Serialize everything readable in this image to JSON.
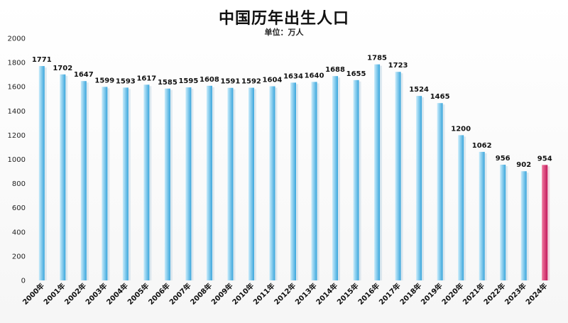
{
  "chart_data": {
    "type": "bar",
    "title": "中国历年出生人口",
    "subtitle": "单位：万人",
    "xlabel": "",
    "ylabel": "",
    "ylim": [
      0,
      2000
    ],
    "yticks": [
      0,
      200,
      400,
      600,
      800,
      1000,
      1200,
      1400,
      1600,
      1800,
      2000
    ],
    "grid": false,
    "categories": [
      "2000年",
      "2001年",
      "2002年",
      "2003年",
      "2004年",
      "2005年",
      "2006年",
      "2007年",
      "2008年",
      "2009年",
      "2010年",
      "2011年",
      "2012年",
      "2013年",
      "2014年",
      "2015年",
      "2016年",
      "2017年",
      "2018年",
      "2019年",
      "2020年",
      "2021年",
      "2022年",
      "2023年",
      "2024年"
    ],
    "values": [
      1771,
      1702,
      1647,
      1599,
      1593,
      1617,
      1585,
      1595,
      1608,
      1591,
      1592,
      1604,
      1634,
      1640,
      1688,
      1655,
      1785,
      1723,
      1524,
      1465,
      1200,
      1062,
      956,
      902,
      954
    ],
    "highlight_index": 24,
    "colors": {
      "bar_light": "#c9ecfb",
      "bar_dark": "#3aa6dc",
      "highlight_light": "#f07aa0",
      "highlight_dark": "#c2185b"
    }
  }
}
